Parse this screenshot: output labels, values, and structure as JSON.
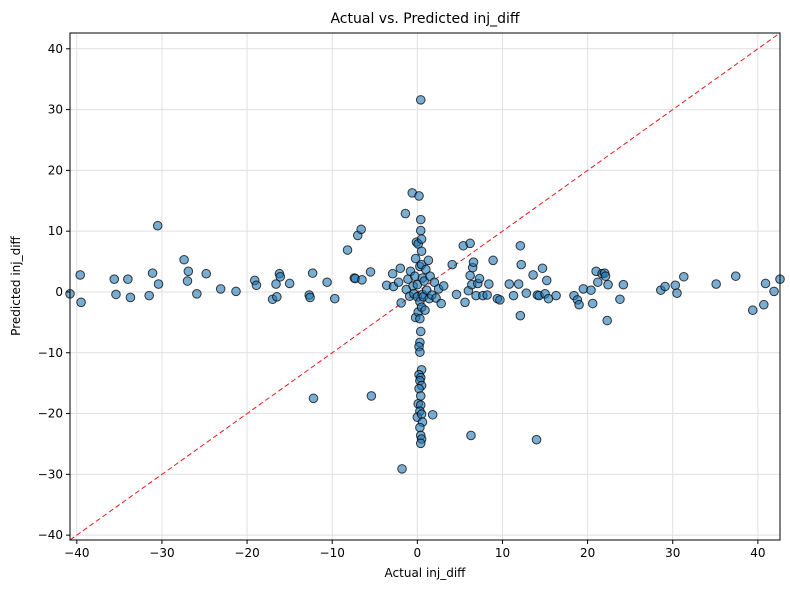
{
  "chart_data": {
    "type": "scatter",
    "title": "Actual vs. Predicted inj_diff",
    "xlabel": "Actual inj_diff",
    "ylabel": "Predicted inj_diff",
    "xlim": [
      -40.8,
      42.6
    ],
    "ylim": [
      -40.8,
      42.6
    ],
    "xticks": [
      -40,
      -30,
      -20,
      -10,
      0,
      10,
      20,
      30,
      40
    ],
    "yticks": [
      -40,
      -30,
      -20,
      -10,
      0,
      10,
      20,
      30,
      40
    ],
    "grid": true,
    "reference_line": {
      "label": "y = x",
      "color": "#e41a1c",
      "style": "dashed"
    },
    "marker_color": "#1f77b4",
    "marker_edge_color": "#000000",
    "marker_alpha": 0.6,
    "series": [
      {
        "points": [
          [
            -40.8,
            -0.3
          ],
          [
            -39.6,
            2.8
          ],
          [
            -39.5,
            -1.7
          ],
          [
            -35.6,
            2.1
          ],
          [
            -35.4,
            -0.4
          ],
          [
            -34.0,
            2.1
          ],
          [
            -33.7,
            -0.9
          ],
          [
            -31.5,
            -0.6
          ],
          [
            -31.1,
            3.1
          ],
          [
            -30.5,
            10.9
          ],
          [
            -30.4,
            1.3
          ],
          [
            -27.4,
            5.3
          ],
          [
            -26.9,
            3.4
          ],
          [
            -27.0,
            1.8
          ],
          [
            -25.9,
            -0.3
          ],
          [
            -24.8,
            3.0
          ],
          [
            -23.1,
            0.5
          ],
          [
            -21.3,
            0.1
          ],
          [
            -19.1,
            1.9
          ],
          [
            -18.9,
            1.1
          ],
          [
            -17.0,
            -1.2
          ],
          [
            -16.5,
            -0.8
          ],
          [
            -16.6,
            1.3
          ],
          [
            -16.2,
            3.0
          ],
          [
            -16.1,
            2.5
          ],
          [
            -15.0,
            1.4
          ],
          [
            -12.7,
            -0.5
          ],
          [
            -12.6,
            -0.9
          ],
          [
            -12.3,
            3.1
          ],
          [
            -12.2,
            -17.5
          ],
          [
            -10.6,
            1.6
          ],
          [
            -9.7,
            -1.1
          ],
          [
            -8.2,
            6.9
          ],
          [
            -7.4,
            2.3
          ],
          [
            -7.3,
            2.2
          ],
          [
            -7.0,
            9.3
          ],
          [
            -6.6,
            10.3
          ],
          [
            -6.5,
            2.0
          ],
          [
            -5.5,
            3.3
          ],
          [
            -5.4,
            -17.1
          ],
          [
            -3.6,
            1.1
          ],
          [
            -2.9,
            3.0
          ],
          [
            -2.8,
            0.9
          ],
          [
            -2.2,
            1.6
          ],
          [
            -2.0,
            3.9
          ],
          [
            -1.9,
            -1.8
          ],
          [
            -1.8,
            -29.1
          ],
          [
            -1.4,
            12.9
          ],
          [
            -1.3,
            0.4
          ],
          [
            -1.1,
            2.1
          ],
          [
            -0.9,
            -0.7
          ],
          [
            -0.8,
            3.4
          ],
          [
            -0.6,
            16.3
          ],
          [
            -0.5,
            1.0
          ],
          [
            -0.4,
            -0.3
          ],
          [
            -0.3,
            2.6
          ],
          [
            -0.2,
            5.5
          ],
          [
            -0.2,
            -4.2
          ],
          [
            -0.1,
            8.2
          ],
          [
            0.0,
            -0.8
          ],
          [
            0.0,
            1.2
          ],
          [
            0.1,
            7.9
          ],
          [
            0.1,
            -3.3
          ],
          [
            0.2,
            15.8
          ],
          [
            0.3,
            4.2
          ],
          [
            0.3,
            -1.6
          ],
          [
            0.4,
            31.6
          ],
          [
            0.4,
            11.9
          ],
          [
            0.4,
            10.1
          ],
          [
            0.5,
            8.7
          ],
          [
            0.5,
            6.7
          ],
          [
            0.5,
            4.5
          ],
          [
            0.6,
            2.3
          ],
          [
            0.6,
            -0.4
          ],
          [
            0.5,
            -2.5
          ],
          [
            0.3,
            -4.4
          ],
          [
            0.4,
            -6.5
          ],
          [
            0.3,
            -8.3
          ],
          [
            0.2,
            -9.0
          ],
          [
            0.3,
            -9.9
          ],
          [
            0.5,
            -12.8
          ],
          [
            0.2,
            -13.6
          ],
          [
            0.4,
            -14.1
          ],
          [
            0.3,
            -14.6
          ],
          [
            0.5,
            -15.4
          ],
          [
            0.2,
            -15.9
          ],
          [
            0.4,
            -17.1
          ],
          [
            0.1,
            -18.4
          ],
          [
            0.4,
            -18.6
          ],
          [
            0.3,
            -19.6
          ],
          [
            0.0,
            -20.6
          ],
          [
            0.5,
            -20.1
          ],
          [
            0.6,
            -21.4
          ],
          [
            0.3,
            -22.3
          ],
          [
            0.4,
            -23.6
          ],
          [
            0.5,
            -24.2
          ],
          [
            0.4,
            -24.9
          ],
          [
            0.7,
            -0.8
          ],
          [
            0.8,
            1.8
          ],
          [
            0.9,
            -3.0
          ],
          [
            1.0,
            3.7
          ],
          [
            1.1,
            0.3
          ],
          [
            1.3,
            5.2
          ],
          [
            1.4,
            -1.1
          ],
          [
            1.5,
            2.6
          ],
          [
            1.7,
            -0.5
          ],
          [
            1.8,
            -20.2
          ],
          [
            2.0,
            1.6
          ],
          [
            2.2,
            -1.0
          ],
          [
            2.5,
            0.5
          ],
          [
            2.8,
            -1.9
          ],
          [
            3.1,
            1.0
          ],
          [
            4.1,
            4.5
          ],
          [
            4.6,
            -0.4
          ],
          [
            5.4,
            7.6
          ],
          [
            5.6,
            -1.7
          ],
          [
            6.0,
            0.2
          ],
          [
            6.2,
            2.7
          ],
          [
            6.2,
            8.0
          ],
          [
            6.3,
            -23.6
          ],
          [
            6.4,
            1.2
          ],
          [
            6.5,
            4.0
          ],
          [
            6.6,
            4.9
          ],
          [
            6.9,
            -0.6
          ],
          [
            7.1,
            1.4
          ],
          [
            7.3,
            2.2
          ],
          [
            7.7,
            -0.6
          ],
          [
            8.2,
            -0.5
          ],
          [
            8.4,
            1.3
          ],
          [
            8.9,
            5.2
          ],
          [
            9.4,
            -1.1
          ],
          [
            9.7,
            -1.3
          ],
          [
            10.8,
            1.3
          ],
          [
            11.3,
            -0.6
          ],
          [
            11.9,
            1.3
          ],
          [
            12.1,
            7.6
          ],
          [
            12.1,
            -3.9
          ],
          [
            12.2,
            4.5
          ],
          [
            12.8,
            -0.2
          ],
          [
            13.6,
            2.8
          ],
          [
            14.0,
            -24.3
          ],
          [
            14.1,
            -0.5
          ],
          [
            14.3,
            -0.6
          ],
          [
            14.7,
            3.9
          ],
          [
            15.0,
            -0.3
          ],
          [
            15.2,
            1.9
          ],
          [
            15.4,
            -1.1
          ],
          [
            16.3,
            -0.6
          ],
          [
            18.4,
            -0.6
          ],
          [
            18.8,
            -1.3
          ],
          [
            19.0,
            -2.1
          ],
          [
            19.5,
            0.5
          ],
          [
            20.4,
            0.3
          ],
          [
            20.6,
            -1.9
          ],
          [
            21.0,
            3.4
          ],
          [
            21.2,
            1.6
          ],
          [
            21.7,
            3.0
          ],
          [
            22.0,
            3.1
          ],
          [
            22.1,
            2.6
          ],
          [
            22.3,
            -4.7
          ],
          [
            22.4,
            1.2
          ],
          [
            23.8,
            -1.2
          ],
          [
            24.2,
            1.2
          ],
          [
            28.6,
            0.3
          ],
          [
            29.1,
            0.9
          ],
          [
            30.3,
            1.1
          ],
          [
            30.5,
            -0.2
          ],
          [
            31.3,
            2.5
          ],
          [
            35.1,
            1.3
          ],
          [
            37.4,
            2.6
          ],
          [
            39.4,
            -3.0
          ],
          [
            40.7,
            -2.1
          ],
          [
            40.9,
            1.4
          ],
          [
            41.9,
            0.1
          ],
          [
            42.6,
            2.1
          ]
        ]
      }
    ]
  }
}
